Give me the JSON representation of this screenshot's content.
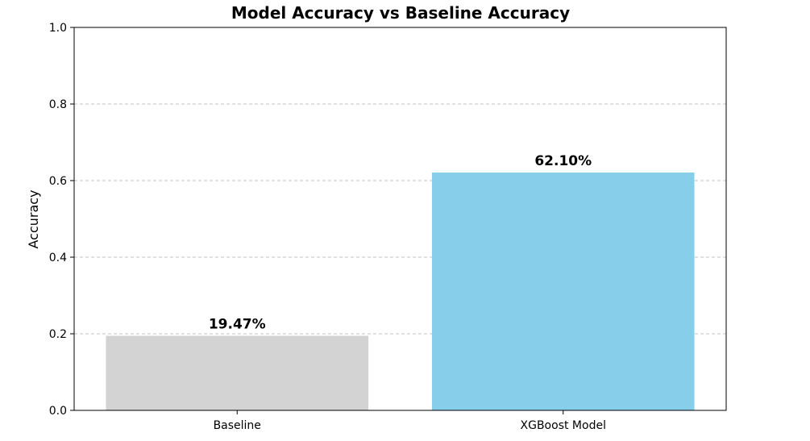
{
  "chart_data": {
    "type": "bar",
    "title": "Model Accuracy vs Baseline Accuracy",
    "xlabel": "",
    "ylabel": "Accuracy",
    "categories": [
      "Baseline",
      "XGBoost Model"
    ],
    "values": [
      0.1947,
      0.621
    ],
    "value_labels": [
      "19.47%",
      "62.10%"
    ],
    "colors": [
      "#d3d3d3",
      "#87ceeb"
    ],
    "ylim": [
      0,
      1.0
    ],
    "yticks": [
      0.0,
      0.2,
      0.4,
      0.6,
      0.8,
      1.0
    ],
    "ytick_labels": [
      "0.0",
      "0.2",
      "0.4",
      "0.6",
      "0.8",
      "1.0"
    ],
    "grid": "y-dashed",
    "legend": "none"
  }
}
